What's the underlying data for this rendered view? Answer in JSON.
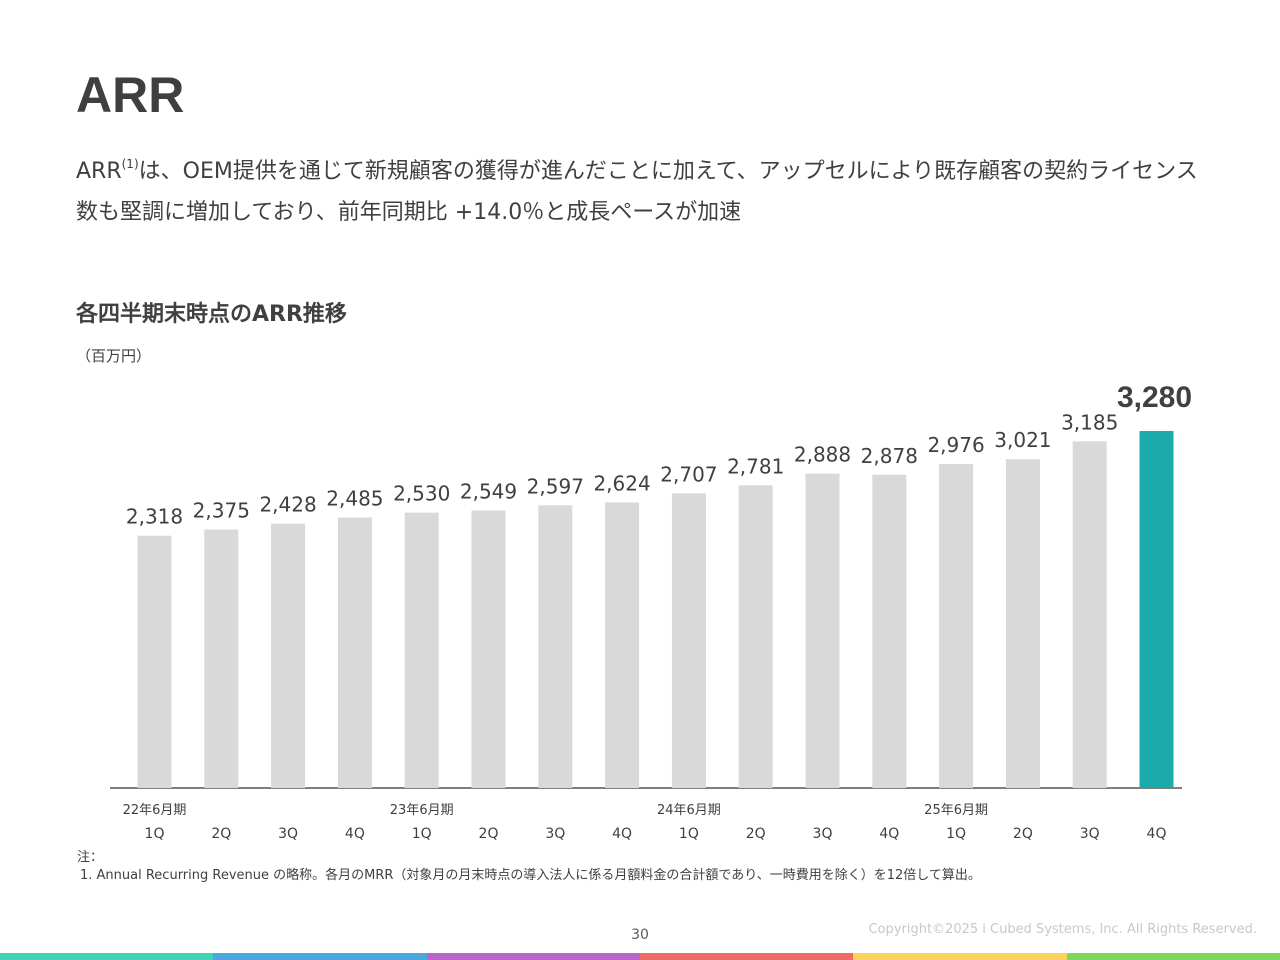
{
  "page": {
    "title": "ARR",
    "lead_prefix": "ARR",
    "lead_sup": "(1)",
    "lead_text": "は、OEM提供を通じて新規顧客の獲得が進んだことに加えて、アップセルにより既存顧客の契約ライセンス数も堅調に増加しており、前年同期比 +14.0％と成長ペースが加速",
    "unit": "（百万円）",
    "note_header": "注：",
    "note_1": "1. Annual Recurring Revenue の略称。各月のMRR（対象月の月末時点の導入法人に係る月額料金の合計額であり、一時費用を除く）を12倍して算出。",
    "page_number": "30",
    "copyright": "Copyright©2025 i Cubed Systems, Inc. All Rights Reserved."
  },
  "colors": {
    "bar_default": "#d9d9d9",
    "bar_highlight": "#1cabab",
    "axis": "#7f7f7f",
    "bottom_bar": [
      "#3fd3b8",
      "#4aa7e0",
      "#b765c9",
      "#f06a6a",
      "#fbd35a",
      "#7fd65d"
    ]
  },
  "chart_data": {
    "type": "bar",
    "title": "各四半期末時点のARR推移",
    "ylabel": "（百万円）",
    "categories": [
      "1Q",
      "2Q",
      "3Q",
      "4Q",
      "1Q",
      "2Q",
      "3Q",
      "4Q",
      "1Q",
      "2Q",
      "3Q",
      "4Q",
      "1Q",
      "2Q",
      "3Q",
      "4Q"
    ],
    "year_labels": [
      {
        "index": 0,
        "label": "22年6月期"
      },
      {
        "index": 4,
        "label": "23年6月期"
      },
      {
        "index": 8,
        "label": "24年6月期"
      },
      {
        "index": 12,
        "label": "25年6月期"
      }
    ],
    "values": [
      2318,
      2375,
      2428,
      2485,
      2530,
      2549,
      2597,
      2624,
      2707,
      2781,
      2888,
      2878,
      2976,
      3021,
      3185,
      3280
    ],
    "value_labels": [
      "2,318",
      "2,375",
      "2,428",
      "2,485",
      "2,530",
      "2,549",
      "2,597",
      "2,624",
      "2,707",
      "2,781",
      "2,888",
      "2,878",
      "2,976",
      "3,021",
      "3,185",
      "3,280"
    ],
    "highlight_index": 15,
    "ylim": [
      0,
      3280
    ],
    "grid": false
  }
}
